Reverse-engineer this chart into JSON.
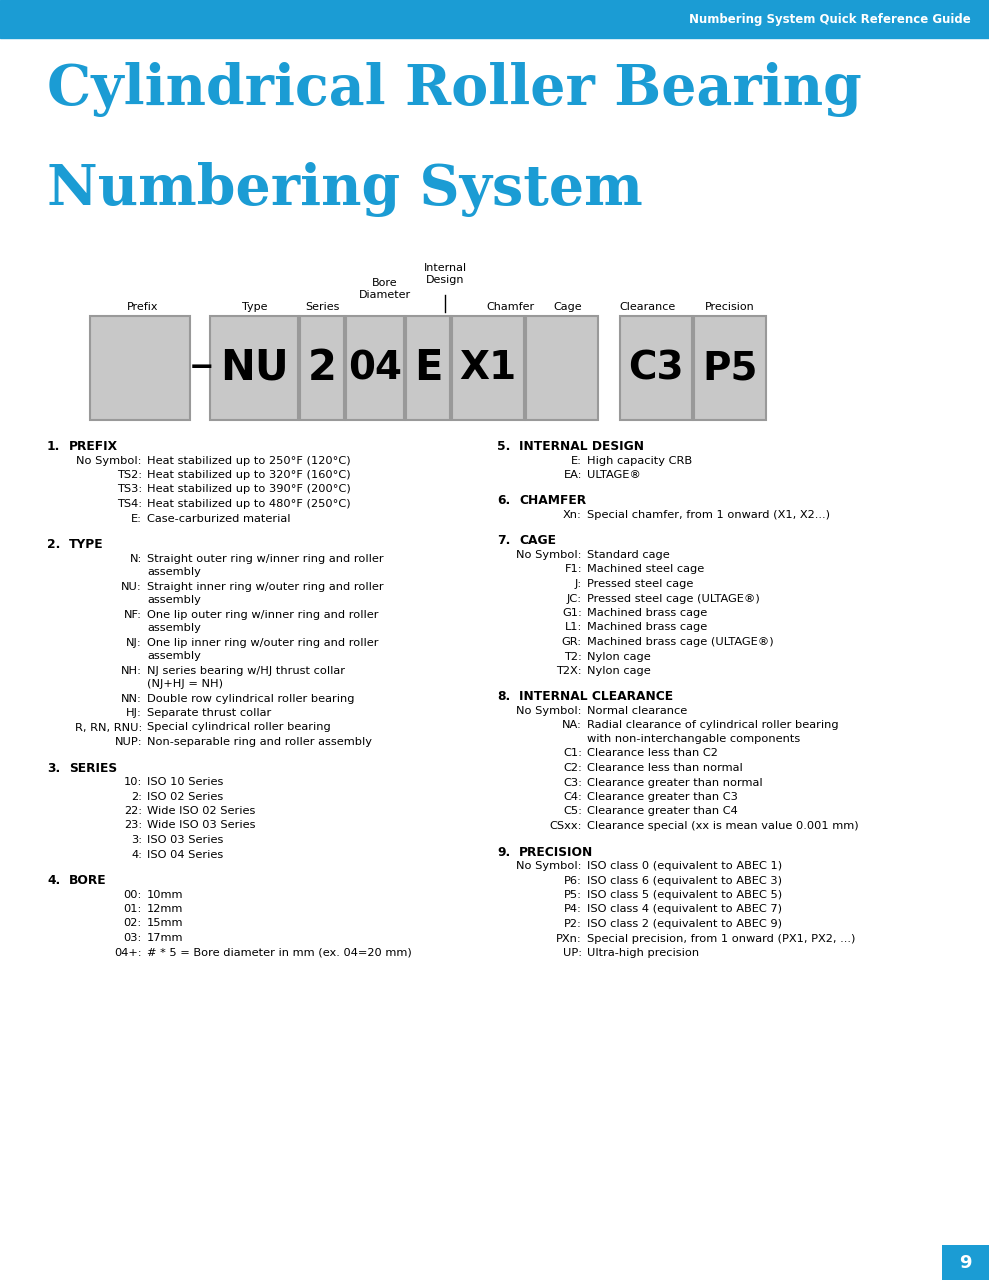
{
  "header_color": "#1b9cd4",
  "header_text": "Numbering System Quick Reference Guide",
  "header_text_color": "#ffffff",
  "title_line1": "Cylindrical Roller Bearing",
  "title_line2": "Numbering System",
  "title_color": "#1b9cd4",
  "bg_color": "#ffffff",
  "box_fill": "#c8c8c8",
  "box_border": "#999999",
  "page_number": "9",
  "page_num_bg": "#1b9cd4",
  "page_num_color": "#ffffff",
  "sections_left": [
    {
      "number": "1.",
      "title": "PREFIX",
      "items": [
        [
          "No Symbol:",
          "Heat stabilized up to 250°F (120°C)"
        ],
        [
          "TS2:",
          "Heat stabilized up to 320°F (160°C)"
        ],
        [
          "TS3:",
          "Heat stabilized up to 390°F (200°C)"
        ],
        [
          "TS4:",
          "Heat stabilized up to 480°F (250°C)"
        ],
        [
          "E:",
          "Case-carburized material"
        ]
      ]
    },
    {
      "number": "2.",
      "title": "TYPE",
      "items": [
        [
          "N:",
          "Straight outer ring w/inner ring and roller\nassembly"
        ],
        [
          "NU:",
          "Straight inner ring w/outer ring and roller\nassembly"
        ],
        [
          "NF:",
          "One lip outer ring w/inner ring and roller\nassembly"
        ],
        [
          "NJ:",
          "One lip inner ring w/outer ring and roller\nassembly"
        ],
        [
          "NH:",
          "NJ series bearing w/HJ thrust collar\n(NJ+HJ = NH)"
        ],
        [
          "NN:",
          "Double row cylindrical roller bearing"
        ],
        [
          "HJ:",
          "Separate thrust collar"
        ],
        [
          "R, RN, RNU:",
          "Special cylindrical roller bearing"
        ],
        [
          "NUP:",
          "Non-separable ring and roller assembly"
        ]
      ]
    },
    {
      "number": "3.",
      "title": "SERIES",
      "items": [
        [
          "10:",
          "ISO 10 Series"
        ],
        [
          "2:",
          "ISO 02 Series"
        ],
        [
          "22:",
          "Wide ISO 02 Series"
        ],
        [
          "23:",
          "Wide ISO 03 Series"
        ],
        [
          "3:",
          "ISO 03 Series"
        ],
        [
          "4:",
          "ISO 04 Series"
        ]
      ]
    },
    {
      "number": "4.",
      "title": "BORE",
      "items": [
        [
          "00:",
          "10mm"
        ],
        [
          "01:",
          "12mm"
        ],
        [
          "02:",
          "15mm"
        ],
        [
          "03:",
          "17mm"
        ],
        [
          "04+:",
          "# * 5 = Bore diameter in mm (ex. 04=20 mm)"
        ]
      ]
    }
  ],
  "sections_right": [
    {
      "number": "5.",
      "title": "INTERNAL DESIGN",
      "items": [
        [
          "E:",
          "High capacity CRB"
        ],
        [
          "EA:",
          "ULTAGE®"
        ]
      ]
    },
    {
      "number": "6.",
      "title": "CHAMFER",
      "items": [
        [
          "Xn:",
          "Special chamfer, from 1 onward (X1, X2...)"
        ]
      ]
    },
    {
      "number": "7.",
      "title": "CAGE",
      "items": [
        [
          "No Symbol:",
          "Standard cage"
        ],
        [
          "F1:",
          "Machined steel cage"
        ],
        [
          "J:",
          "Pressed steel cage"
        ],
        [
          "JC:",
          "Pressed steel cage (ULTAGE®)"
        ],
        [
          "G1:",
          "Machined brass cage"
        ],
        [
          "L1:",
          "Machined brass cage"
        ],
        [
          "GR:",
          "Machined brass cage (ULTAGE®)"
        ],
        [
          "T2:",
          "Nylon cage"
        ],
        [
          "T2X:",
          "Nylon cage"
        ]
      ]
    },
    {
      "number": "8.",
      "title": "INTERNAL CLEARANCE",
      "items": [
        [
          "No Symbol:",
          "Normal clearance"
        ],
        [
          "NA:",
          "Radial clearance of cylindrical roller bearing\nwith non-interchangable components"
        ],
        [
          "C1:",
          "Clearance less than C2"
        ],
        [
          "C2:",
          "Clearance less than normal"
        ],
        [
          "C3:",
          "Clearance greater than normal"
        ],
        [
          "C4:",
          "Clearance greater than C3"
        ],
        [
          "C5:",
          "Clearance greater than C4"
        ],
        [
          "CSxx:",
          "Clearance special (xx is mean value 0.001 mm)"
        ]
      ]
    },
    {
      "number": "9.",
      "title": "PRECISION",
      "items": [
        [
          "No Symbol:",
          "ISO class 0 (equivalent to ABEC 1)"
        ],
        [
          "P6:",
          "ISO class 6 (equivalent to ABEC 3)"
        ],
        [
          "P5:",
          "ISO class 5 (equivalent to ABEC 5)"
        ],
        [
          "P4:",
          "ISO class 4 (equivalent to ABEC 7)"
        ],
        [
          "P2:",
          "ISO class 2 (equivalent to ABEC 9)"
        ],
        [
          "PXn:",
          "Special precision, from 1 onward (PX1, PX2, ...)"
        ],
        [
          "UP:",
          "Ultra-high precision"
        ]
      ]
    }
  ]
}
